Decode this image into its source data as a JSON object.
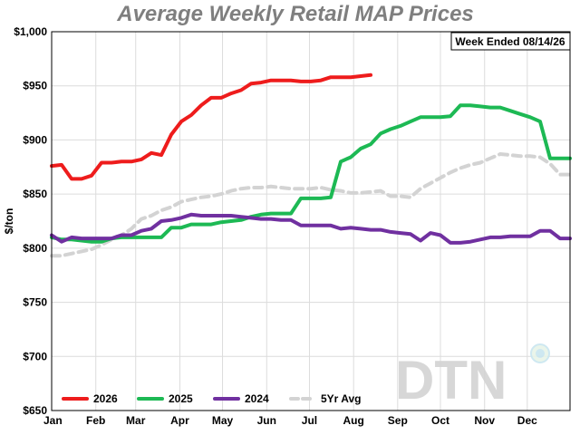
{
  "chart_data": {
    "type": "line",
    "title": "Average Weekly Retail MAP Prices",
    "ylabel": "$/ton",
    "xlabel": "",
    "ylim": [
      650,
      1000
    ],
    "yticks": [
      650,
      700,
      750,
      800,
      850,
      900,
      950,
      1000
    ],
    "ytick_labels": [
      "$650",
      "$700",
      "$750",
      "$800",
      "$850",
      "$900",
      "$950",
      "$1,000"
    ],
    "xlim": [
      0,
      52
    ],
    "xticks": [
      0,
      4.43,
      8.43,
      12.86,
      17.14,
      21.57,
      25.86,
      30.29,
      34.71,
      39,
      43.43,
      47.71
    ],
    "xtick_labels": [
      "Jan",
      "Feb",
      "Mar",
      "Apr",
      "May",
      "Jun",
      "Jul",
      "Aug",
      "Sep",
      "Oct",
      "Nov",
      "Dec"
    ],
    "grid": true,
    "legend_position": "bottom-left",
    "annotation": "Week Ended 08/14/26",
    "logo": "DTN",
    "series": [
      {
        "name": "2026",
        "color": "#ee1c1c",
        "dash": false,
        "x": [
          0,
          1,
          2,
          3,
          4,
          5,
          6,
          7,
          8,
          9,
          10,
          11,
          12,
          13,
          14,
          15,
          16,
          17,
          18,
          19,
          20,
          21,
          22,
          23,
          24,
          25,
          26,
          27,
          28,
          29,
          30,
          31,
          32
        ],
        "values": [
          876,
          877,
          864,
          864,
          867,
          879,
          879,
          880,
          880,
          882,
          888,
          886,
          905,
          917,
          923,
          932,
          939,
          939,
          943,
          946,
          952,
          953,
          955,
          955,
          955,
          954,
          954,
          955,
          958,
          958,
          958,
          959,
          960
        ]
      },
      {
        "name": "2025",
        "color": "#1db954",
        "dash": false,
        "x": [
          0,
          1,
          2,
          3,
          4,
          5,
          6,
          7,
          8,
          9,
          10,
          11,
          12,
          13,
          14,
          15,
          16,
          17,
          18,
          19,
          20,
          21,
          22,
          23,
          24,
          25,
          26,
          27,
          28,
          29,
          30,
          31,
          32,
          33,
          34,
          35,
          36,
          37,
          38,
          39,
          40,
          41,
          42,
          43,
          44,
          45,
          46,
          47,
          48,
          49,
          50,
          51,
          52
        ],
        "values": [
          810,
          808,
          808,
          807,
          806,
          806,
          809,
          810,
          810,
          810,
          810,
          810,
          819,
          819,
          822,
          822,
          822,
          824,
          825,
          826,
          829,
          831,
          832,
          832,
          832,
          846,
          846,
          846,
          847,
          880,
          884,
          892,
          896,
          906,
          910,
          913,
          917,
          921,
          921,
          921,
          922,
          932,
          932,
          931,
          930,
          930,
          927,
          924,
          921,
          917,
          883,
          883,
          883
        ]
      },
      {
        "name": "2024",
        "color": "#7030a0",
        "dash": false,
        "x": [
          0,
          1,
          2,
          3,
          4,
          5,
          6,
          7,
          8,
          9,
          10,
          11,
          12,
          13,
          14,
          15,
          16,
          17,
          18,
          19,
          20,
          21,
          22,
          23,
          24,
          25,
          26,
          27,
          28,
          29,
          30,
          31,
          32,
          33,
          34,
          35,
          36,
          37,
          38,
          39,
          40,
          41,
          42,
          43,
          44,
          45,
          46,
          47,
          48,
          49,
          50,
          51,
          52
        ],
        "values": [
          812,
          806,
          810,
          809,
          809,
          809,
          809,
          812,
          812,
          816,
          818,
          825,
          826,
          828,
          831,
          830,
          830,
          830,
          830,
          829,
          828,
          827,
          827,
          826,
          826,
          821,
          821,
          821,
          821,
          818,
          819,
          818,
          817,
          817,
          815,
          814,
          813,
          807,
          814,
          812,
          805,
          805,
          806,
          808,
          810,
          810,
          811,
          811,
          811,
          816,
          816,
          809,
          809
        ]
      },
      {
        "name": "5Yr Avg",
        "color": "#d3d3d3",
        "dash": true,
        "x": [
          0,
          1,
          2,
          3,
          4,
          5,
          6,
          7,
          8,
          9,
          10,
          11,
          12,
          13,
          14,
          15,
          16,
          17,
          18,
          19,
          20,
          21,
          22,
          23,
          24,
          25,
          26,
          27,
          28,
          29,
          30,
          31,
          32,
          33,
          34,
          35,
          36,
          37,
          38,
          39,
          40,
          41,
          42,
          43,
          44,
          45,
          46,
          47,
          48,
          49,
          50,
          51,
          52
        ],
        "values": [
          793,
          793,
          795,
          797,
          799,
          803,
          808,
          812,
          818,
          827,
          830,
          835,
          838,
          843,
          845,
          847,
          848,
          850,
          853,
          855,
          856,
          856,
          857,
          856,
          855,
          855,
          855,
          856,
          854,
          853,
          851,
          851,
          852,
          853,
          848,
          848,
          847,
          855,
          860,
          865,
          870,
          874,
          877,
          879,
          883,
          887,
          886,
          885,
          885,
          884,
          878,
          868,
          868
        ]
      }
    ]
  }
}
